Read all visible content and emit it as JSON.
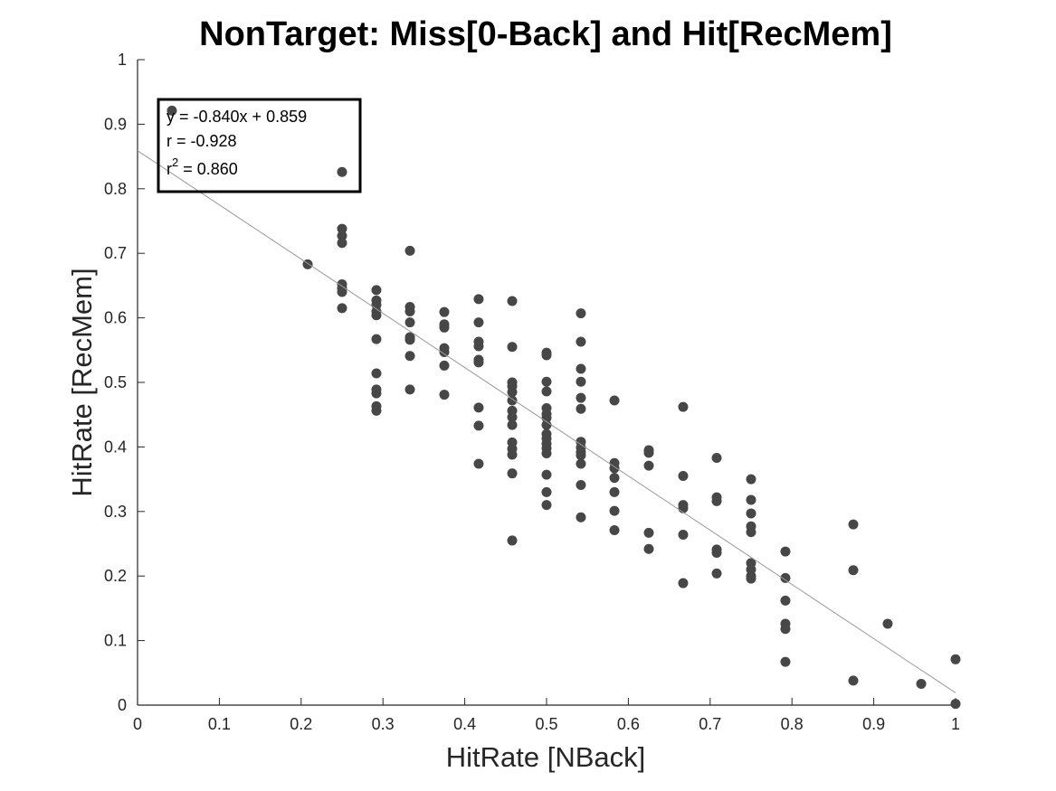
{
  "chart_data": {
    "type": "scatter",
    "title": "NonTarget: Miss[0-Back] and Hit[RecMem]",
    "xlabel": "HitRate [NBack]",
    "ylabel": "HitRate [RecMem]",
    "xlim": [
      0,
      1
    ],
    "ylim": [
      0,
      1
    ],
    "xticks": [
      0,
      0.1,
      0.2,
      0.3,
      0.4,
      0.5,
      0.6,
      0.7,
      0.8,
      0.9,
      1
    ],
    "yticks": [
      0,
      0.1,
      0.2,
      0.3,
      0.4,
      0.5,
      0.6,
      0.7,
      0.8,
      0.9,
      1
    ],
    "xtick_labels": [
      "0",
      "0.1",
      "0.2",
      "0.3",
      "0.4",
      "0.5",
      "0.6",
      "0.7",
      "0.8",
      "0.9",
      "1"
    ],
    "ytick_labels": [
      "0",
      "0.1",
      "0.2",
      "0.3",
      "0.4",
      "0.5",
      "0.6",
      "0.7",
      "0.8",
      "0.9",
      "1"
    ],
    "grid": false,
    "marker_color": "#474747",
    "fit_line_color": "#9a9a9a",
    "fit": {
      "slope": -0.84,
      "intercept": 0.859
    },
    "annotation": {
      "line1": "y = -0.840x + 0.859",
      "line2": "r = -0.928",
      "line3_base": "r",
      "line3_sup": "2",
      "line3_rest": " = 0.860"
    },
    "points": [
      {
        "x": 0.042,
        "y": 0.921
      },
      {
        "x": 0.25,
        "y": 0.826
      },
      {
        "x": 0.208,
        "y": 0.683
      },
      {
        "x": 0.25,
        "y": 0.738
      },
      {
        "x": 0.25,
        "y": 0.727
      },
      {
        "x": 0.25,
        "y": 0.716
      },
      {
        "x": 0.25,
        "y": 0.652
      },
      {
        "x": 0.25,
        "y": 0.646
      },
      {
        "x": 0.25,
        "y": 0.64
      },
      {
        "x": 0.25,
        "y": 0.615
      },
      {
        "x": 0.292,
        "y": 0.643
      },
      {
        "x": 0.292,
        "y": 0.627
      },
      {
        "x": 0.292,
        "y": 0.62
      },
      {
        "x": 0.292,
        "y": 0.61
      },
      {
        "x": 0.292,
        "y": 0.604
      },
      {
        "x": 0.292,
        "y": 0.567
      },
      {
        "x": 0.292,
        "y": 0.514
      },
      {
        "x": 0.292,
        "y": 0.489
      },
      {
        "x": 0.292,
        "y": 0.483
      },
      {
        "x": 0.292,
        "y": 0.463
      },
      {
        "x": 0.292,
        "y": 0.456
      },
      {
        "x": 0.333,
        "y": 0.704
      },
      {
        "x": 0.333,
        "y": 0.617
      },
      {
        "x": 0.333,
        "y": 0.61
      },
      {
        "x": 0.333,
        "y": 0.593
      },
      {
        "x": 0.333,
        "y": 0.57
      },
      {
        "x": 0.333,
        "y": 0.566
      },
      {
        "x": 0.333,
        "y": 0.541
      },
      {
        "x": 0.333,
        "y": 0.489
      },
      {
        "x": 0.375,
        "y": 0.609
      },
      {
        "x": 0.375,
        "y": 0.59
      },
      {
        "x": 0.375,
        "y": 0.585
      },
      {
        "x": 0.375,
        "y": 0.553
      },
      {
        "x": 0.375,
        "y": 0.547
      },
      {
        "x": 0.375,
        "y": 0.526
      },
      {
        "x": 0.375,
        "y": 0.481
      },
      {
        "x": 0.417,
        "y": 0.629
      },
      {
        "x": 0.417,
        "y": 0.593
      },
      {
        "x": 0.417,
        "y": 0.563
      },
      {
        "x": 0.417,
        "y": 0.556
      },
      {
        "x": 0.417,
        "y": 0.535
      },
      {
        "x": 0.417,
        "y": 0.531
      },
      {
        "x": 0.417,
        "y": 0.461
      },
      {
        "x": 0.417,
        "y": 0.433
      },
      {
        "x": 0.417,
        "y": 0.374
      },
      {
        "x": 0.458,
        "y": 0.626
      },
      {
        "x": 0.458,
        "y": 0.555
      },
      {
        "x": 0.458,
        "y": 0.5
      },
      {
        "x": 0.458,
        "y": 0.494
      },
      {
        "x": 0.458,
        "y": 0.485
      },
      {
        "x": 0.458,
        "y": 0.472
      },
      {
        "x": 0.458,
        "y": 0.456
      },
      {
        "x": 0.458,
        "y": 0.446
      },
      {
        "x": 0.458,
        "y": 0.434
      },
      {
        "x": 0.458,
        "y": 0.407
      },
      {
        "x": 0.458,
        "y": 0.397
      },
      {
        "x": 0.458,
        "y": 0.388
      },
      {
        "x": 0.458,
        "y": 0.359
      },
      {
        "x": 0.458,
        "y": 0.255
      },
      {
        "x": 0.5,
        "y": 0.546
      },
      {
        "x": 0.5,
        "y": 0.542
      },
      {
        "x": 0.5,
        "y": 0.501
      },
      {
        "x": 0.5,
        "y": 0.486
      },
      {
        "x": 0.5,
        "y": 0.46
      },
      {
        "x": 0.5,
        "y": 0.451
      },
      {
        "x": 0.5,
        "y": 0.445
      },
      {
        "x": 0.5,
        "y": 0.434
      },
      {
        "x": 0.5,
        "y": 0.42
      },
      {
        "x": 0.5,
        "y": 0.413
      },
      {
        "x": 0.5,
        "y": 0.405
      },
      {
        "x": 0.5,
        "y": 0.398
      },
      {
        "x": 0.5,
        "y": 0.39
      },
      {
        "x": 0.5,
        "y": 0.357
      },
      {
        "x": 0.5,
        "y": 0.33
      },
      {
        "x": 0.5,
        "y": 0.31
      },
      {
        "x": 0.542,
        "y": 0.607
      },
      {
        "x": 0.542,
        "y": 0.563
      },
      {
        "x": 0.542,
        "y": 0.521
      },
      {
        "x": 0.542,
        "y": 0.501
      },
      {
        "x": 0.542,
        "y": 0.476
      },
      {
        "x": 0.542,
        "y": 0.459
      },
      {
        "x": 0.542,
        "y": 0.408
      },
      {
        "x": 0.542,
        "y": 0.399
      },
      {
        "x": 0.542,
        "y": 0.392
      },
      {
        "x": 0.542,
        "y": 0.387
      },
      {
        "x": 0.542,
        "y": 0.374
      },
      {
        "x": 0.542,
        "y": 0.341
      },
      {
        "x": 0.542,
        "y": 0.291
      },
      {
        "x": 0.583,
        "y": 0.472
      },
      {
        "x": 0.583,
        "y": 0.375
      },
      {
        "x": 0.583,
        "y": 0.367
      },
      {
        "x": 0.583,
        "y": 0.352
      },
      {
        "x": 0.583,
        "y": 0.33
      },
      {
        "x": 0.583,
        "y": 0.301
      },
      {
        "x": 0.583,
        "y": 0.271
      },
      {
        "x": 0.625,
        "y": 0.395
      },
      {
        "x": 0.625,
        "y": 0.391
      },
      {
        "x": 0.625,
        "y": 0.371
      },
      {
        "x": 0.625,
        "y": 0.267
      },
      {
        "x": 0.625,
        "y": 0.242
      },
      {
        "x": 0.667,
        "y": 0.462
      },
      {
        "x": 0.667,
        "y": 0.355
      },
      {
        "x": 0.667,
        "y": 0.31
      },
      {
        "x": 0.667,
        "y": 0.305
      },
      {
        "x": 0.667,
        "y": 0.264
      },
      {
        "x": 0.667,
        "y": 0.189
      },
      {
        "x": 0.708,
        "y": 0.383
      },
      {
        "x": 0.708,
        "y": 0.322
      },
      {
        "x": 0.708,
        "y": 0.316
      },
      {
        "x": 0.708,
        "y": 0.241
      },
      {
        "x": 0.708,
        "y": 0.236
      },
      {
        "x": 0.708,
        "y": 0.204
      },
      {
        "x": 0.75,
        "y": 0.35
      },
      {
        "x": 0.75,
        "y": 0.318
      },
      {
        "x": 0.75,
        "y": 0.297
      },
      {
        "x": 0.75,
        "y": 0.277
      },
      {
        "x": 0.75,
        "y": 0.268
      },
      {
        "x": 0.75,
        "y": 0.22
      },
      {
        "x": 0.75,
        "y": 0.21
      },
      {
        "x": 0.75,
        "y": 0.2
      },
      {
        "x": 0.75,
        "y": 0.196
      },
      {
        "x": 0.792,
        "y": 0.238
      },
      {
        "x": 0.792,
        "y": 0.197
      },
      {
        "x": 0.792,
        "y": 0.162
      },
      {
        "x": 0.792,
        "y": 0.126
      },
      {
        "x": 0.792,
        "y": 0.118
      },
      {
        "x": 0.792,
        "y": 0.067
      },
      {
        "x": 0.875,
        "y": 0.28
      },
      {
        "x": 0.875,
        "y": 0.209
      },
      {
        "x": 0.875,
        "y": 0.038
      },
      {
        "x": 0.917,
        "y": 0.126
      },
      {
        "x": 0.958,
        "y": 0.033
      },
      {
        "x": 1.0,
        "y": 0.071
      },
      {
        "x": 1.0,
        "y": 0.002
      }
    ]
  }
}
